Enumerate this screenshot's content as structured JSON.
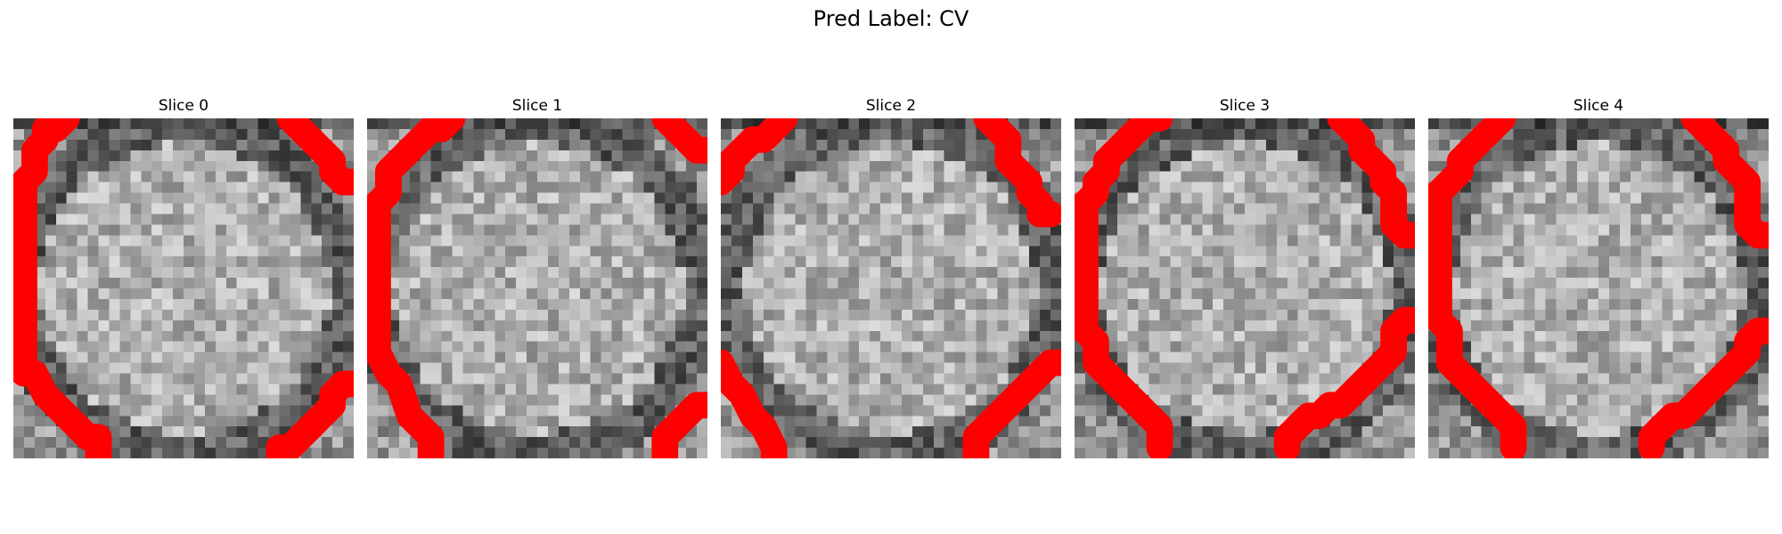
{
  "figure": {
    "title": "Pred Label: CV",
    "contour_color": "#ff0000"
  },
  "slices": [
    {
      "label": "Slice 0",
      "seed": 11
    },
    {
      "label": "Slice 1",
      "seed": 23
    },
    {
      "label": "Slice 2",
      "seed": 37
    },
    {
      "label": "Slice 3",
      "seed": 53
    },
    {
      "label": "Slice 4",
      "seed": 71
    }
  ]
}
